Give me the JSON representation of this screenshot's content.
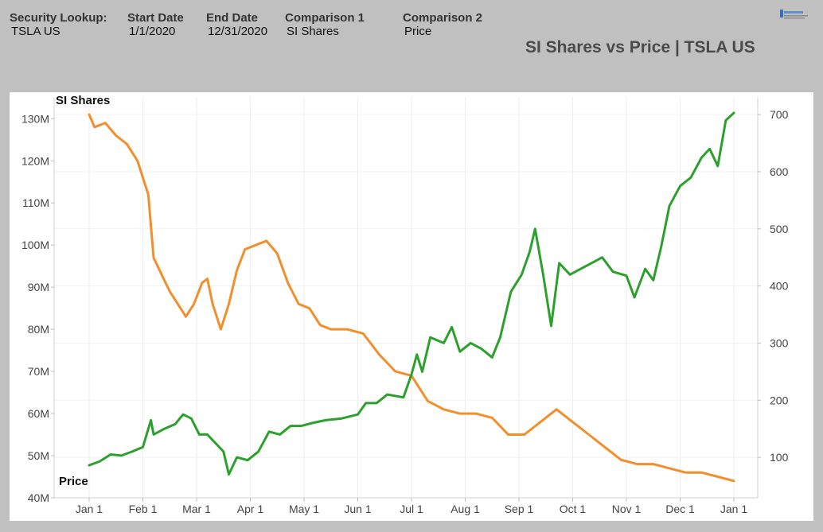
{
  "header": {
    "fields": [
      {
        "label": "Security Lookup:",
        "value": "TSLA US"
      },
      {
        "label": "Start Date",
        "value": "1/1/2020"
      },
      {
        "label": "End Date",
        "value": "12/31/2020"
      },
      {
        "label": "Comparison 1",
        "value": "SI Shares"
      },
      {
        "label": "Comparison 2",
        "value": "Price"
      }
    ],
    "logo_icon": "brand-logo-icon"
  },
  "chart_data": {
    "type": "line",
    "title": "SI Shares vs Price | TSLA US",
    "x": [
      "Jan 1",
      "Feb 1",
      "Mar 1",
      "Apr 1",
      "May 1",
      "Jun 1",
      "Jul 1",
      "Aug 1",
      "Sep 1",
      "Oct 1",
      "Nov 1",
      "Dec 1",
      "Jan 1"
    ],
    "xlabel": "",
    "y_left": {
      "label": "SI Shares",
      "ticks": [
        "40M",
        "50M",
        "60M",
        "70M",
        "80M",
        "90M",
        "100M",
        "110M",
        "120M",
        "130M"
      ],
      "range": [
        40,
        132
      ]
    },
    "y_right": {
      "label": "Price",
      "ticks": [
        "100",
        "200",
        "300",
        "400",
        "500",
        "600",
        "700"
      ],
      "range": [
        50,
        703
      ]
    },
    "series": [
      {
        "name": "SI Shares",
        "axis": "left",
        "units": "millions",
        "color": "#f28e2b",
        "points": [
          [
            0,
            131
          ],
          [
            0.1,
            128
          ],
          [
            0.3,
            129
          ],
          [
            0.5,
            126
          ],
          [
            0.7,
            124
          ],
          [
            0.9,
            120
          ],
          [
            1.0,
            116
          ],
          [
            1.1,
            112
          ],
          [
            1.2,
            97
          ],
          [
            1.35,
            93
          ],
          [
            1.5,
            89
          ],
          [
            1.7,
            85
          ],
          [
            1.8,
            83
          ],
          [
            1.95,
            86
          ],
          [
            2.1,
            91
          ],
          [
            2.2,
            92
          ],
          [
            2.3,
            86
          ],
          [
            2.45,
            80
          ],
          [
            2.6,
            86
          ],
          [
            2.75,
            94
          ],
          [
            2.9,
            99
          ],
          [
            3.1,
            100
          ],
          [
            3.3,
            101
          ],
          [
            3.5,
            98
          ],
          [
            3.7,
            91
          ],
          [
            3.9,
            86
          ],
          [
            4.1,
            85
          ],
          [
            4.3,
            81
          ],
          [
            4.5,
            80
          ],
          [
            4.8,
            80
          ],
          [
            5.1,
            79
          ],
          [
            5.4,
            74
          ],
          [
            5.7,
            70
          ],
          [
            6.0,
            69
          ],
          [
            6.3,
            63
          ],
          [
            6.6,
            61
          ],
          [
            6.9,
            60
          ],
          [
            7.2,
            60
          ],
          [
            7.5,
            59
          ],
          [
            7.8,
            55
          ],
          [
            8.1,
            55
          ],
          [
            8.4,
            58
          ],
          [
            8.7,
            61
          ],
          [
            9.0,
            58
          ],
          [
            9.3,
            55
          ],
          [
            9.6,
            52
          ],
          [
            9.9,
            49
          ],
          [
            10.2,
            48
          ],
          [
            10.5,
            48
          ],
          [
            10.8,
            47
          ],
          [
            11.1,
            46
          ],
          [
            11.4,
            46
          ],
          [
            11.7,
            45
          ],
          [
            12.0,
            44
          ]
        ]
      },
      {
        "name": "Price",
        "axis": "right",
        "units": "USD",
        "color": "#2ca02c",
        "points": [
          [
            0,
            86
          ],
          [
            0.2,
            93
          ],
          [
            0.4,
            105
          ],
          [
            0.6,
            103
          ],
          [
            0.8,
            110
          ],
          [
            1.0,
            118
          ],
          [
            1.15,
            165
          ],
          [
            1.2,
            140
          ],
          [
            1.4,
            150
          ],
          [
            1.6,
            158
          ],
          [
            1.75,
            175
          ],
          [
            1.9,
            168
          ],
          [
            2.05,
            140
          ],
          [
            2.2,
            140
          ],
          [
            2.35,
            125
          ],
          [
            2.5,
            110
          ],
          [
            2.6,
            70
          ],
          [
            2.75,
            100
          ],
          [
            2.95,
            95
          ],
          [
            3.15,
            110
          ],
          [
            3.35,
            145
          ],
          [
            3.55,
            140
          ],
          [
            3.75,
            155
          ],
          [
            3.95,
            155
          ],
          [
            4.15,
            160
          ],
          [
            4.4,
            165
          ],
          [
            4.7,
            168
          ],
          [
            5.0,
            175
          ],
          [
            5.15,
            195
          ],
          [
            5.35,
            195
          ],
          [
            5.55,
            210
          ],
          [
            5.85,
            205
          ],
          [
            6.0,
            245
          ],
          [
            6.1,
            280
          ],
          [
            6.2,
            250
          ],
          [
            6.35,
            310
          ],
          [
            6.6,
            300
          ],
          [
            6.75,
            328
          ],
          [
            6.9,
            285
          ],
          [
            7.1,
            300
          ],
          [
            7.3,
            290
          ],
          [
            7.5,
            275
          ],
          [
            7.65,
            310
          ],
          [
            7.85,
            390
          ],
          [
            8.05,
            420
          ],
          [
            8.2,
            460
          ],
          [
            8.3,
            500
          ],
          [
            8.45,
            420
          ],
          [
            8.6,
            330
          ],
          [
            8.75,
            440
          ],
          [
            8.95,
            420
          ],
          [
            9.15,
            430
          ],
          [
            9.35,
            440
          ],
          [
            9.55,
            450
          ],
          [
            9.75,
            425
          ],
          [
            10.0,
            418
          ],
          [
            10.15,
            380
          ],
          [
            10.35,
            430
          ],
          [
            10.5,
            410
          ],
          [
            10.65,
            470
          ],
          [
            10.8,
            540
          ],
          [
            11.0,
            575
          ],
          [
            11.2,
            590
          ],
          [
            11.4,
            625
          ],
          [
            11.55,
            640
          ],
          [
            11.7,
            610
          ],
          [
            11.85,
            690
          ],
          [
            12.0,
            703
          ]
        ]
      }
    ],
    "grid": true,
    "legend": "inline-labels"
  }
}
